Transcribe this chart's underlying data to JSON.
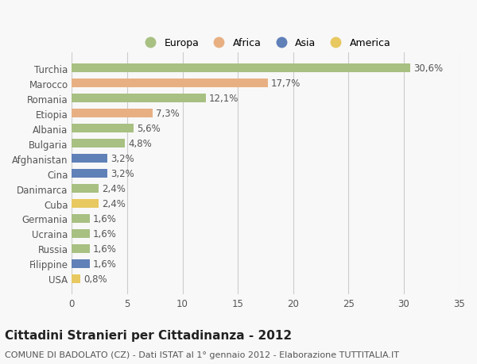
{
  "countries": [
    "Turchia",
    "Marocco",
    "Romania",
    "Etiopia",
    "Albania",
    "Bulgaria",
    "Afghanistan",
    "Cina",
    "Danimarca",
    "Cuba",
    "Germania",
    "Ucraina",
    "Russia",
    "Filippine",
    "USA"
  ],
  "values": [
    30.6,
    17.7,
    12.1,
    7.3,
    5.6,
    4.8,
    3.2,
    3.2,
    2.4,
    2.4,
    1.6,
    1.6,
    1.6,
    1.6,
    0.8
  ],
  "labels": [
    "30,6%",
    "17,7%",
    "12,1%",
    "7,3%",
    "5,6%",
    "4,8%",
    "3,2%",
    "3,2%",
    "2,4%",
    "2,4%",
    "1,6%",
    "1,6%",
    "1,6%",
    "1,6%",
    "0,8%"
  ],
  "continents": [
    "Europa",
    "Africa",
    "Europa",
    "Africa",
    "Europa",
    "Europa",
    "Asia",
    "Asia",
    "Europa",
    "America",
    "Europa",
    "Europa",
    "Europa",
    "Asia",
    "America"
  ],
  "continent_colors": {
    "Europa": "#a8c082",
    "Africa": "#e8b082",
    "Asia": "#6080b8",
    "America": "#e8c860"
  },
  "legend_order": [
    "Europa",
    "Africa",
    "Asia",
    "America"
  ],
  "bg_color": "#f8f8f8",
  "grid_color": "#cccccc",
  "xlim": [
    0,
    35
  ],
  "xticks": [
    0,
    5,
    10,
    15,
    20,
    25,
    30,
    35
  ],
  "title": "Cittadini Stranieri per Cittadinanza - 2012",
  "subtitle": "COMUNE DI BADOLATO (CZ) - Dati ISTAT al 1° gennaio 2012 - Elaborazione TUTTITALIA.IT",
  "bar_height": 0.6,
  "label_fontsize": 8.5,
  "tick_fontsize": 8.5,
  "title_fontsize": 11,
  "subtitle_fontsize": 8
}
